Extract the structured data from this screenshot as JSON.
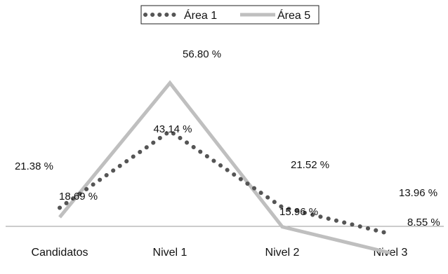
{
  "chart_data": {
    "type": "line",
    "categories": [
      "Candidatos",
      "Nivel 1",
      "Nivel 2",
      "Nivel 3"
    ],
    "series": [
      {
        "name": "Área 1",
        "values": [
          21.38,
          43.14,
          21.52,
          13.96
        ],
        "labels": [
          "21.38 %",
          "43.14 %",
          "21.52 %",
          "13.96 %"
        ],
        "color": "#555555",
        "style": "dotted"
      },
      {
        "name": "Área 5",
        "values": [
          18.69,
          56.8,
          15.96,
          8.55
        ],
        "labels": [
          "18.69 %",
          "56.80 %",
          "15.96 %",
          "8.55 %"
        ],
        "color": "#bfbfbf",
        "style": "solid"
      }
    ],
    "ylim": [
      0,
      70
    ],
    "grid": false,
    "legend": "top-center",
    "axis_color": "#999999"
  }
}
